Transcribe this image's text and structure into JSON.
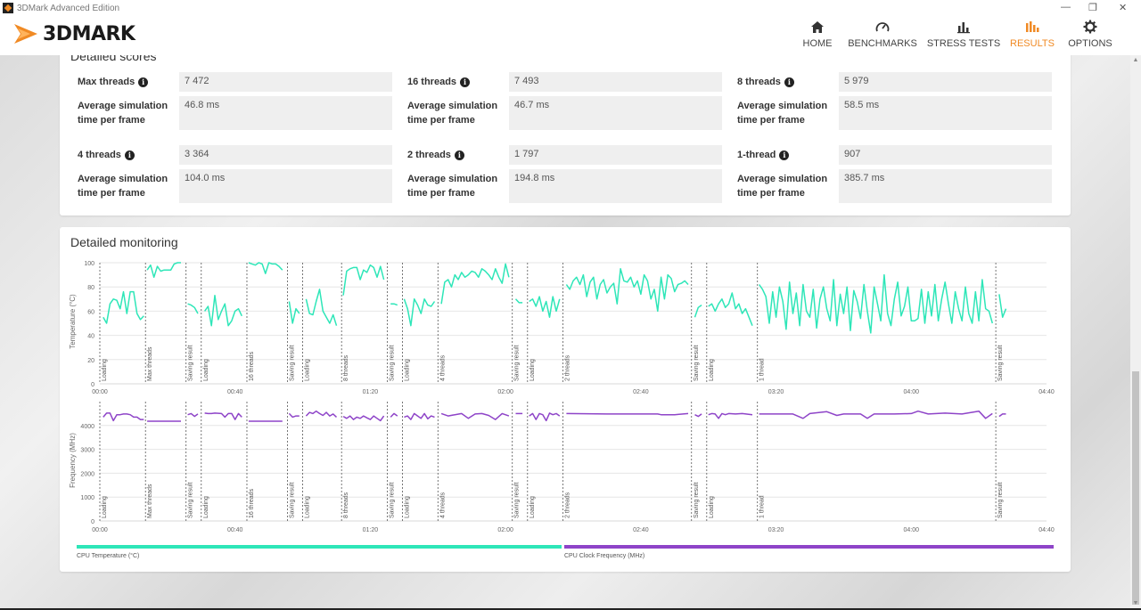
{
  "window": {
    "title": "3DMark Advanced Edition"
  },
  "header": {
    "logo_text": "3DMARK",
    "nav": [
      {
        "label": "HOME",
        "icon": "home-icon"
      },
      {
        "label": "BENCHMARKS",
        "icon": "gauge-icon"
      },
      {
        "label": "STRESS TESTS",
        "icon": "bar-chart-icon"
      },
      {
        "label": "RESULTS",
        "icon": "results-icon",
        "active": true
      },
      {
        "label": "OPTIONS",
        "icon": "gear-icon"
      }
    ],
    "accent": "#f08a24"
  },
  "scores": {
    "title": "Detailed scores",
    "sim_label_1": "Average simulation",
    "sim_label_2": "time per frame",
    "items": [
      {
        "label": "Max threads",
        "score": "7 472",
        "sim": "46.8 ms"
      },
      {
        "label": "16 threads",
        "score": "7 493",
        "sim": "46.7 ms"
      },
      {
        "label": "8 threads",
        "score": "5 979",
        "sim": "58.5 ms"
      },
      {
        "label": "4 threads",
        "score": "3 364",
        "sim": "104.0 ms"
      },
      {
        "label": "2 threads",
        "score": "1 797",
        "sim": "194.8 ms"
      },
      {
        "label": "1-thread",
        "score": "907",
        "sim": "385.7 ms"
      }
    ]
  },
  "monitoring": {
    "title": "Detailed monitoring",
    "legend": [
      {
        "label": "CPU Temperature (°C)",
        "color": "#2ee6b8"
      },
      {
        "label": "CPU Clock Frequency (MHz)",
        "color": "#8e44c8"
      }
    ]
  },
  "chart_data": [
    {
      "type": "line",
      "ylabel": "Temperature (°C)",
      "ylim": [
        0,
        100
      ],
      "yticks": [
        "0",
        "20",
        "40",
        "60",
        "80",
        "100"
      ],
      "xlim": [
        0,
        280
      ],
      "xticks": [
        "00:00",
        "00:40",
        "01:20",
        "02:00",
        "02:40",
        "03:20",
        "04:00",
        "04:40"
      ],
      "color": "#2ee6b8",
      "markers": [
        {
          "t": 0,
          "label": "Loading"
        },
        {
          "t": 13.5,
          "label": "Max threads"
        },
        {
          "t": 25.5,
          "label": "Saving result"
        },
        {
          "t": 30,
          "label": "Loading"
        },
        {
          "t": 43.5,
          "label": "16 threads"
        },
        {
          "t": 55.5,
          "label": "Saving result"
        },
        {
          "t": 60,
          "label": "Loading"
        },
        {
          "t": 71.5,
          "label": "8 threads"
        },
        {
          "t": 85,
          "label": "Saving result"
        },
        {
          "t": 89.5,
          "label": "Loading"
        },
        {
          "t": 100,
          "label": "4 threads"
        },
        {
          "t": 122,
          "label": "Saving result"
        },
        {
          "t": 126.5,
          "label": "Loading"
        },
        {
          "t": 137,
          "label": "2 threads"
        },
        {
          "t": 175,
          "label": "Saving result"
        },
        {
          "t": 179.5,
          "label": "Loading"
        },
        {
          "t": 194.5,
          "label": "1 thread"
        },
        {
          "t": 265,
          "label": "Saving result"
        }
      ],
      "segments": [
        {
          "x": [
            1,
            2,
            3,
            4,
            5,
            6,
            7,
            8,
            9,
            10,
            11,
            12,
            13
          ],
          "y": [
            55,
            50,
            66,
            70,
            69,
            62,
            76,
            58,
            76,
            76,
            58,
            53,
            56
          ]
        },
        {
          "x": [
            14,
            15,
            16,
            17,
            18,
            19,
            20,
            21,
            22,
            23,
            24
          ],
          "y": [
            94,
            98,
            88,
            97,
            93,
            94,
            94,
            94,
            99,
            100,
            100
          ]
        },
        {
          "x": [
            26,
            27,
            28,
            29
          ],
          "y": [
            66,
            65,
            63,
            58
          ]
        },
        {
          "x": [
            31,
            32,
            33,
            34,
            35,
            36,
            37,
            38,
            39,
            40,
            41,
            42
          ],
          "y": [
            60,
            64,
            48,
            73,
            53,
            60,
            66,
            48,
            52,
            60,
            62,
            56
          ]
        },
        {
          "x": [
            44,
            45,
            46,
            47,
            48,
            49,
            50,
            51,
            52,
            53,
            54
          ],
          "y": [
            100,
            99,
            98,
            100,
            99,
            91,
            100,
            99,
            99,
            97,
            94
          ]
        },
        {
          "x": [
            56,
            57,
            58,
            59
          ],
          "y": [
            68,
            50,
            62,
            58
          ]
        },
        {
          "x": [
            61,
            62,
            63,
            64,
            65,
            66,
            67,
            68,
            69,
            70
          ],
          "y": [
            70,
            58,
            57,
            68,
            78,
            60,
            55,
            50,
            57,
            48
          ]
        },
        {
          "x": [
            72,
            73,
            74,
            75,
            76,
            77,
            78,
            79,
            80,
            81,
            82,
            83,
            84
          ],
          "y": [
            73,
            93,
            95,
            96,
            96,
            86,
            94,
            92,
            98,
            96,
            88,
            97,
            86
          ]
        },
        {
          "x": [
            86,
            87,
            88
          ],
          "y": [
            66,
            66,
            65
          ]
        },
        {
          "x": [
            90,
            91,
            92,
            93,
            94,
            95,
            96,
            97,
            98,
            99
          ],
          "y": [
            70,
            62,
            48,
            70,
            65,
            58,
            70,
            65,
            64,
            68
          ]
        },
        {
          "x": [
            101,
            102,
            103,
            104,
            105,
            106,
            107,
            108,
            109,
            110,
            111,
            112,
            113,
            114,
            115,
            116,
            117,
            118,
            119,
            120,
            121
          ],
          "y": [
            66,
            84,
            86,
            80,
            90,
            86,
            92,
            88,
            90,
            93,
            92,
            88,
            95,
            93,
            90,
            86,
            95,
            88,
            83,
            99,
            88
          ]
        },
        {
          "x": [
            123,
            124,
            125
          ],
          "y": [
            70,
            67,
            67
          ]
        },
        {
          "x": [
            127,
            128,
            129,
            130,
            131,
            132,
            133,
            134,
            135,
            136
          ],
          "y": [
            68,
            70,
            64,
            72,
            60,
            68,
            55,
            72,
            60,
            70
          ]
        },
        {
          "x": [
            138,
            139,
            140,
            141,
            142,
            143,
            144,
            145,
            146,
            147,
            148,
            149,
            150,
            151,
            152,
            153,
            154,
            155,
            156,
            157,
            158,
            159,
            160,
            161,
            162,
            163,
            164,
            165,
            166,
            167,
            168,
            169,
            170,
            171,
            172,
            173,
            174
          ],
          "y": [
            82,
            78,
            85,
            88,
            82,
            90,
            72,
            84,
            88,
            70,
            82,
            86,
            75,
            80,
            83,
            66,
            95,
            85,
            84,
            88,
            80,
            85,
            74,
            90,
            85,
            70,
            78,
            60,
            88,
            70,
            90,
            87,
            76,
            82,
            83,
            85,
            82
          ]
        },
        {
          "x": [
            176,
            177,
            178
          ],
          "y": [
            55,
            63,
            65
          ]
        },
        {
          "x": [
            180,
            181,
            182,
            183,
            184,
            185,
            186,
            187,
            188,
            189,
            190,
            191,
            192,
            193
          ],
          "y": [
            64,
            66,
            60,
            66,
            70,
            63,
            66,
            75,
            62,
            66,
            58,
            62,
            55,
            48
          ]
        },
        {
          "x": [
            195,
            196,
            197,
            198,
            199,
            200,
            201,
            202,
            203,
            204,
            205,
            206,
            207,
            208,
            209,
            210,
            211,
            212,
            213,
            214,
            215,
            216,
            217,
            218,
            219,
            220,
            221,
            222,
            223,
            224,
            225,
            226,
            227,
            228,
            229,
            230,
            231,
            232,
            233,
            234,
            235,
            236,
            237,
            238,
            239,
            240,
            241,
            242,
            243,
            244,
            245,
            246,
            247,
            248,
            249,
            250,
            251,
            252,
            253,
            254,
            255,
            256,
            257,
            258,
            259,
            260,
            261,
            262,
            263,
            264
          ],
          "y": [
            82,
            78,
            72,
            50,
            76,
            55,
            80,
            68,
            45,
            84,
            58,
            75,
            48,
            82,
            60,
            55,
            78,
            46,
            70,
            80,
            62,
            52,
            86,
            48,
            74,
            58,
            80,
            44,
            77,
            68,
            54,
            82,
            60,
            42,
            80,
            66,
            52,
            90,
            58,
            48,
            70,
            84,
            56,
            64,
            80,
            52,
            52,
            54,
            78,
            50,
            76,
            56,
            82,
            52,
            70,
            84,
            66,
            50,
            76,
            62,
            52,
            80,
            58,
            50,
            76,
            52,
            86,
            62,
            60,
            50
          ]
        },
        {
          "x": [
            266,
            267,
            268
          ],
          "y": [
            74,
            55,
            62
          ]
        }
      ]
    },
    {
      "type": "line",
      "ylabel": "Frequency (MHz)",
      "ylim": [
        0,
        5000
      ],
      "yticks": [
        "0",
        "1000",
        "2000",
        "3000",
        "4000"
      ],
      "xlim": [
        0,
        280
      ],
      "xticks": [
        "00:00",
        "00:40",
        "01:20",
        "02:00",
        "02:40",
        "03:20",
        "04:00",
        "04:40"
      ],
      "color": "#8e44c8",
      "segments": [
        {
          "x": [
            1,
            2,
            3,
            4,
            5,
            6,
            7,
            8,
            9,
            10,
            11,
            12,
            13
          ],
          "y": [
            4350,
            4520,
            4520,
            4200,
            4450,
            4450,
            4480,
            4480,
            4450,
            4350,
            4350,
            4250,
            4250
          ]
        },
        {
          "x": [
            14,
            24
          ],
          "y": [
            4180,
            4180
          ]
        },
        {
          "x": [
            26,
            27,
            28,
            29
          ],
          "y": [
            4450,
            4500,
            4380,
            4480
          ]
        },
        {
          "x": [
            31,
            32,
            33,
            34,
            35,
            36,
            37,
            38,
            39,
            40,
            41,
            42
          ],
          "y": [
            4520,
            4500,
            4500,
            4520,
            4510,
            4500,
            4350,
            4500,
            4500,
            4250,
            4500,
            4350
          ]
        },
        {
          "x": [
            44,
            54
          ],
          "y": [
            4180,
            4180
          ]
        },
        {
          "x": [
            56,
            57,
            58,
            59
          ],
          "y": [
            4500,
            4350,
            4400,
            4400
          ]
        },
        {
          "x": [
            61,
            62,
            63,
            64,
            65,
            66,
            67,
            68,
            69,
            70
          ],
          "y": [
            4400,
            4550,
            4500,
            4600,
            4500,
            4420,
            4550,
            4400,
            4480,
            4350
          ]
        },
        {
          "x": [
            72,
            73,
            74,
            75,
            76,
            77,
            78,
            79,
            80,
            81,
            82,
            83,
            84
          ],
          "y": [
            4380,
            4300,
            4400,
            4250,
            4350,
            4300,
            4400,
            4320,
            4250,
            4400,
            4300,
            4200,
            4400
          ]
        },
        {
          "x": [
            86,
            87,
            88
          ],
          "y": [
            4350,
            4500,
            4400
          ]
        },
        {
          "x": [
            90,
            91,
            92,
            93,
            94,
            95,
            96,
            97,
            98,
            99
          ],
          "y": [
            4350,
            4400,
            4250,
            4500,
            4400,
            4300,
            4500,
            4280,
            4400,
            4350
          ]
        },
        {
          "x": [
            101,
            103,
            105,
            107,
            109,
            111,
            113,
            115,
            117,
            119,
            121
          ],
          "y": [
            4500,
            4400,
            4450,
            4500,
            4300,
            4480,
            4500,
            4420,
            4250,
            4500,
            4400
          ]
        },
        {
          "x": [
            123,
            125
          ],
          "y": [
            4500,
            4500
          ]
        },
        {
          "x": [
            127,
            128,
            129,
            130,
            131,
            132,
            133,
            134,
            135,
            136
          ],
          "y": [
            4400,
            4500,
            4250,
            4500,
            4450,
            4200,
            4520,
            4450,
            4500,
            4400
          ]
        },
        {
          "x": [
            138,
            150,
            160,
            165,
            166,
            170,
            174
          ],
          "y": [
            4500,
            4480,
            4480,
            4480,
            4450,
            4450,
            4500
          ]
        },
        {
          "x": [
            176,
            177,
            178
          ],
          "y": [
            4450,
            4380,
            4480
          ]
        },
        {
          "x": [
            180,
            181,
            182,
            183,
            184,
            185,
            186,
            188,
            190,
            193
          ],
          "y": [
            4450,
            4500,
            4480,
            4300,
            4500,
            4450,
            4500,
            4480,
            4500,
            4450
          ]
        },
        {
          "x": [
            195,
            205,
            208,
            210,
            215,
            218,
            220,
            225,
            227,
            229,
            235,
            240,
            242,
            245,
            250,
            255,
            260,
            262,
            264
          ],
          "y": [
            4480,
            4480,
            4300,
            4500,
            4580,
            4420,
            4480,
            4480,
            4300,
            4480,
            4480,
            4500,
            4600,
            4480,
            4520,
            4480,
            4600,
            4300,
            4500
          ]
        },
        {
          "x": [
            266,
            267,
            268
          ],
          "y": [
            4380,
            4480,
            4480
          ]
        }
      ]
    }
  ]
}
